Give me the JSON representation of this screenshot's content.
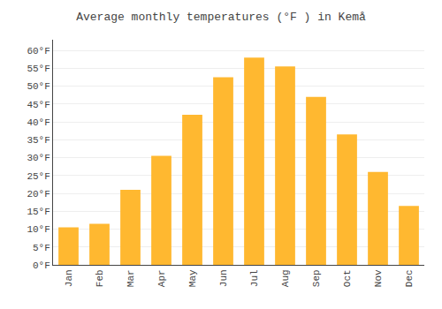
{
  "chart_data": {
    "type": "bar",
    "title": "Average monthly temperatures (°F ) in Kemå",
    "categories": [
      "Jan",
      "Feb",
      "Mar",
      "Apr",
      "May",
      "Jun",
      "Jul",
      "Aug",
      "Sep",
      "Oct",
      "Nov",
      "Dec"
    ],
    "values": [
      10.5,
      11.5,
      21.0,
      30.5,
      42.0,
      52.5,
      58.0,
      55.5,
      47.0,
      36.5,
      26.0,
      16.5
    ],
    "color": "#FFB830",
    "ylim": [
      0,
      63
    ],
    "yticks": [
      {
        "value": 0,
        "label": "0°F"
      },
      {
        "value": 5,
        "label": "5°F"
      },
      {
        "value": 10,
        "label": "10°F"
      },
      {
        "value": 15,
        "label": "15°F"
      },
      {
        "value": 20,
        "label": "20°F"
      },
      {
        "value": 25,
        "label": "25°F"
      },
      {
        "value": 30,
        "label": "30°F"
      },
      {
        "value": 35,
        "label": "35°F"
      },
      {
        "value": 40,
        "label": "40°F"
      },
      {
        "value": 45,
        "label": "45°F"
      },
      {
        "value": 50,
        "label": "50°F"
      },
      {
        "value": 55,
        "label": "55°F"
      },
      {
        "value": 60,
        "label": "60°F"
      }
    ],
    "grid": true
  }
}
